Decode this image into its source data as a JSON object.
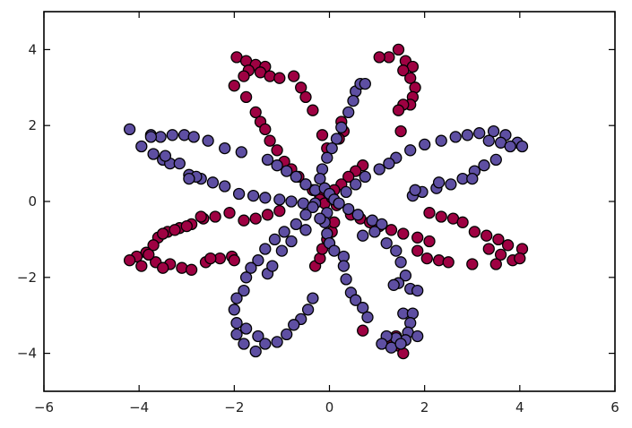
{
  "chart_data": {
    "type": "scatter",
    "title": "",
    "xlabel": "",
    "ylabel": "",
    "xlim": [
      -6,
      6
    ],
    "ylim": [
      -5,
      5
    ],
    "xticks": [
      -6,
      -4,
      -2,
      0,
      2,
      4,
      6
    ],
    "yticks": [
      -4,
      -2,
      0,
      2,
      4
    ],
    "grid": false,
    "legend": "none",
    "series": [
      {
        "color": "#9e0142",
        "points": [
          [
            -1.95,
            3.8
          ],
          [
            -1.75,
            3.7
          ],
          [
            -1.55,
            3.6
          ],
          [
            -1.35,
            3.55
          ],
          [
            -1.7,
            3.45
          ],
          [
            -1.45,
            3.4
          ],
          [
            -1.25,
            3.3
          ],
          [
            -1.05,
            3.25
          ],
          [
            -1.8,
            3.3
          ],
          [
            -2.0,
            3.05
          ],
          [
            -1.75,
            2.75
          ],
          [
            -1.55,
            2.35
          ],
          [
            -1.45,
            2.1
          ],
          [
            -1.35,
            1.9
          ],
          [
            -1.25,
            1.6
          ],
          [
            -1.1,
            1.35
          ],
          [
            -0.95,
            1.05
          ],
          [
            -0.8,
            0.85
          ],
          [
            -0.65,
            0.65
          ],
          [
            -0.5,
            0.45
          ],
          [
            -0.35,
            0.3
          ],
          [
            -0.2,
            0.15
          ],
          [
            1.45,
            4.0
          ],
          [
            1.25,
            3.8
          ],
          [
            1.05,
            3.8
          ],
          [
            1.6,
            3.7
          ],
          [
            1.75,
            3.55
          ],
          [
            1.55,
            3.45
          ],
          [
            1.7,
            3.25
          ],
          [
            1.8,
            3.0
          ],
          [
            1.75,
            2.75
          ],
          [
            1.7,
            2.55
          ],
          [
            1.55,
            2.55
          ],
          [
            1.45,
            2.4
          ],
          [
            1.5,
            1.85
          ],
          [
            -0.75,
            3.3
          ],
          [
            -0.6,
            3.0
          ],
          [
            -0.5,
            2.75
          ],
          [
            -0.35,
            2.4
          ],
          [
            0.25,
            2.1
          ],
          [
            0.3,
            1.85
          ],
          [
            0.2,
            1.65
          ],
          [
            0.7,
            0.95
          ],
          [
            0.55,
            0.8
          ],
          [
            0.4,
            0.65
          ],
          [
            0.25,
            0.45
          ],
          [
            0.1,
            0.3
          ],
          [
            -0.15,
            1.75
          ],
          [
            -0.05,
            1.4
          ],
          [
            -0.2,
            0.05
          ],
          [
            -0.1,
            -0.05
          ],
          [
            0.05,
            0.1
          ],
          [
            0.15,
            -0.1
          ],
          [
            0.45,
            -0.35
          ],
          [
            0.65,
            -0.45
          ],
          [
            0.85,
            -0.55
          ],
          [
            1.05,
            -0.65
          ],
          [
            1.3,
            -0.75
          ],
          [
            1.55,
            -0.85
          ],
          [
            1.85,
            -0.95
          ],
          [
            2.1,
            -1.05
          ],
          [
            1.85,
            -1.3
          ],
          [
            2.05,
            -1.5
          ],
          [
            2.3,
            -1.55
          ],
          [
            2.5,
            -1.6
          ],
          [
            2.1,
            -0.3
          ],
          [
            2.35,
            -0.4
          ],
          [
            2.6,
            -0.45
          ],
          [
            2.8,
            -0.55
          ],
          [
            3.05,
            -0.8
          ],
          [
            3.3,
            -0.9
          ],
          [
            3.55,
            -1.0
          ],
          [
            3.75,
            -1.15
          ],
          [
            4.05,
            -1.25
          ],
          [
            3.6,
            -1.4
          ],
          [
            3.35,
            -1.25
          ],
          [
            3.5,
            -1.65
          ],
          [
            3.0,
            -1.65
          ],
          [
            3.85,
            -1.55
          ],
          [
            4.0,
            -1.5
          ],
          [
            -0.3,
            -1.7
          ],
          [
            -0.2,
            -1.5
          ],
          [
            -0.15,
            -1.25
          ],
          [
            -0.05,
            -1.0
          ],
          [
            0.05,
            -0.8
          ],
          [
            0.1,
            -0.55
          ],
          [
            0.7,
            -3.4
          ],
          [
            1.25,
            -3.7
          ],
          [
            1.45,
            -3.8
          ],
          [
            1.55,
            -4.0
          ],
          [
            1.4,
            -3.55
          ],
          [
            -1.05,
            -0.25
          ],
          [
            -1.3,
            -0.35
          ],
          [
            -1.55,
            -0.45
          ],
          [
            -1.8,
            -0.5
          ],
          [
            -2.1,
            -0.3
          ],
          [
            -2.4,
            -0.4
          ],
          [
            -2.65,
            -0.45
          ],
          [
            -2.9,
            -0.6
          ],
          [
            -3.15,
            -0.7
          ],
          [
            -3.4,
            -0.8
          ],
          [
            -3.6,
            -0.95
          ],
          [
            -3.7,
            -1.15
          ],
          [
            -3.85,
            -1.35
          ],
          [
            -4.05,
            -1.45
          ],
          [
            -4.2,
            -1.55
          ],
          [
            -3.95,
            -1.7
          ],
          [
            -3.65,
            -1.6
          ],
          [
            -3.35,
            -1.65
          ],
          [
            -3.1,
            -1.75
          ],
          [
            -2.9,
            -1.8
          ],
          [
            -2.6,
            -1.6
          ],
          [
            -2.3,
            -1.5
          ],
          [
            -2.05,
            -1.45
          ],
          [
            -2.5,
            -1.5
          ],
          [
            -2.7,
            -0.4
          ],
          [
            -3.0,
            -0.65
          ],
          [
            -3.25,
            -0.75
          ],
          [
            -3.5,
            -0.85
          ],
          [
            -3.8,
            -1.4
          ],
          [
            -3.5,
            -1.75
          ],
          [
            -2.0,
            -1.55
          ]
        ]
      },
      {
        "color": "#5e4fa2",
        "points": [
          [
            -4.2,
            1.9
          ],
          [
            -3.95,
            1.45
          ],
          [
            -3.75,
            1.75
          ],
          [
            -3.55,
            1.7
          ],
          [
            -3.3,
            1.75
          ],
          [
            -3.05,
            1.75
          ],
          [
            -2.85,
            1.7
          ],
          [
            -2.55,
            1.6
          ],
          [
            -2.2,
            1.4
          ],
          [
            -1.85,
            1.3
          ],
          [
            -3.7,
            1.25
          ],
          [
            -3.5,
            1.1
          ],
          [
            -3.35,
            1.0
          ],
          [
            -3.15,
            1.0
          ],
          [
            -2.95,
            0.7
          ],
          [
            -2.7,
            0.6
          ],
          [
            -2.45,
            0.5
          ],
          [
            -2.2,
            0.4
          ],
          [
            -1.9,
            0.2
          ],
          [
            -1.6,
            0.15
          ],
          [
            -1.35,
            0.1
          ],
          [
            -1.05,
            0.05
          ],
          [
            -0.8,
            0.0
          ],
          [
            -0.55,
            -0.05
          ],
          [
            -0.3,
            -0.05
          ],
          [
            -1.3,
            1.1
          ],
          [
            -1.1,
            0.95
          ],
          [
            -0.9,
            0.8
          ],
          [
            -0.7,
            0.65
          ],
          [
            -0.5,
            0.45
          ],
          [
            -0.3,
            0.3
          ],
          [
            -2.8,
            0.65
          ],
          [
            -2.95,
            0.6
          ],
          [
            -3.45,
            1.2
          ],
          [
            -3.75,
            1.7
          ],
          [
            1.7,
            1.35
          ],
          [
            2.0,
            1.5
          ],
          [
            2.35,
            1.6
          ],
          [
            2.65,
            1.7
          ],
          [
            2.9,
            1.75
          ],
          [
            3.15,
            1.8
          ],
          [
            3.45,
            1.85
          ],
          [
            3.7,
            1.75
          ],
          [
            3.95,
            1.55
          ],
          [
            3.6,
            1.55
          ],
          [
            3.35,
            1.6
          ],
          [
            3.8,
            1.45
          ],
          [
            4.05,
            1.45
          ],
          [
            3.5,
            1.1
          ],
          [
            3.25,
            0.95
          ],
          [
            3.05,
            0.8
          ],
          [
            2.8,
            0.6
          ],
          [
            2.55,
            0.45
          ],
          [
            2.25,
            0.35
          ],
          [
            1.95,
            0.25
          ],
          [
            1.75,
            0.15
          ],
          [
            2.3,
            0.5
          ],
          [
            3.0,
            0.6
          ],
          [
            1.8,
            0.3
          ],
          [
            0.55,
            2.9
          ],
          [
            0.65,
            3.1
          ],
          [
            0.75,
            3.1
          ],
          [
            0.5,
            2.65
          ],
          [
            0.4,
            2.35
          ],
          [
            0.25,
            1.95
          ],
          [
            0.15,
            1.65
          ],
          [
            0.05,
            1.4
          ],
          [
            -0.05,
            1.15
          ],
          [
            -0.15,
            0.85
          ],
          [
            -0.2,
            0.6
          ],
          [
            -0.1,
            0.35
          ],
          [
            0.0,
            0.2
          ],
          [
            0.1,
            0.05
          ],
          [
            1.4,
            1.15
          ],
          [
            1.25,
            1.0
          ],
          [
            1.05,
            0.85
          ],
          [
            0.75,
            0.65
          ],
          [
            0.55,
            0.45
          ],
          [
            0.35,
            0.25
          ],
          [
            0.2,
            -0.05
          ],
          [
            0.4,
            -0.2
          ],
          [
            0.6,
            -0.35
          ],
          [
            0.9,
            -0.5
          ],
          [
            1.1,
            -0.6
          ],
          [
            0.7,
            -0.9
          ],
          [
            0.95,
            -0.8
          ],
          [
            1.2,
            -1.1
          ],
          [
            1.4,
            -1.3
          ],
          [
            1.5,
            -1.6
          ],
          [
            1.6,
            -1.95
          ],
          [
            1.7,
            -2.3
          ],
          [
            1.85,
            -2.35
          ],
          [
            1.45,
            -2.15
          ],
          [
            1.35,
            -2.2
          ],
          [
            1.55,
            -2.95
          ],
          [
            1.75,
            -2.95
          ],
          [
            1.7,
            -3.2
          ],
          [
            1.65,
            -3.45
          ],
          [
            1.85,
            -3.55
          ],
          [
            1.6,
            -3.65
          ],
          [
            1.4,
            -3.6
          ],
          [
            1.2,
            -3.55
          ],
          [
            1.1,
            -3.75
          ],
          [
            1.3,
            -3.85
          ],
          [
            1.5,
            -3.75
          ],
          [
            0.3,
            -1.45
          ],
          [
            0.3,
            -1.7
          ],
          [
            0.35,
            -2.05
          ],
          [
            0.45,
            -2.4
          ],
          [
            0.55,
            -2.6
          ],
          [
            0.7,
            -2.8
          ],
          [
            0.8,
            -3.05
          ],
          [
            -0.05,
            -0.3
          ],
          [
            -0.1,
            -0.55
          ],
          [
            -0.05,
            -0.85
          ],
          [
            0.0,
            -1.1
          ],
          [
            0.1,
            -1.3
          ],
          [
            -0.35,
            -0.15
          ],
          [
            -0.5,
            -0.35
          ],
          [
            -0.7,
            -0.6
          ],
          [
            -0.95,
            -0.8
          ],
          [
            -1.15,
            -1.0
          ],
          [
            -1.35,
            -1.25
          ],
          [
            -1.5,
            -1.55
          ],
          [
            -1.65,
            -1.75
          ],
          [
            -1.75,
            -2.0
          ],
          [
            -1.8,
            -2.35
          ],
          [
            -1.95,
            -2.55
          ],
          [
            -2.0,
            -2.85
          ],
          [
            -1.95,
            -3.2
          ],
          [
            -1.75,
            -3.35
          ],
          [
            -1.5,
            -3.55
          ],
          [
            -1.35,
            -3.75
          ],
          [
            -1.1,
            -3.7
          ],
          [
            -0.9,
            -3.5
          ],
          [
            -1.55,
            -3.95
          ],
          [
            -1.8,
            -3.75
          ],
          [
            -1.95,
            -3.5
          ],
          [
            -0.35,
            -2.55
          ],
          [
            -0.45,
            -2.85
          ],
          [
            -0.6,
            -3.1
          ],
          [
            -0.75,
            -3.25
          ],
          [
            -0.5,
            -0.75
          ],
          [
            -0.8,
            -1.05
          ],
          [
            -1.0,
            -1.3
          ],
          [
            -0.2,
            -0.45
          ],
          [
            -1.3,
            -1.9
          ],
          [
            -1.2,
            -1.7
          ]
        ]
      }
    ]
  }
}
